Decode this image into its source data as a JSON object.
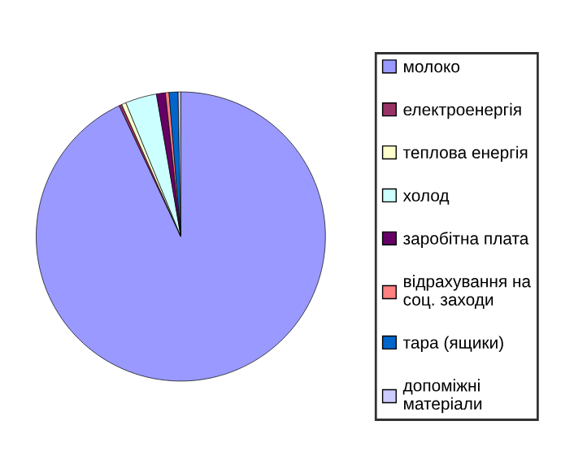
{
  "chart_data": {
    "type": "pie",
    "categories": [
      "молоко",
      "електроенергія",
      "теплова енергія",
      "холод",
      "заробітна плата",
      "відрахування на соц. заходи",
      "тара (ящики)",
      "допоміжні матеріали"
    ],
    "values": [
      93,
      0.3,
      0.5,
      3.5,
      1,
      0.4,
      1,
      0.3
    ],
    "colors": [
      "#9999ff",
      "#993366",
      "#ffffcc",
      "#ccffff",
      "#660066",
      "#ff8080",
      "#0066cc",
      "#ccccff"
    ],
    "legend": "right"
  }
}
